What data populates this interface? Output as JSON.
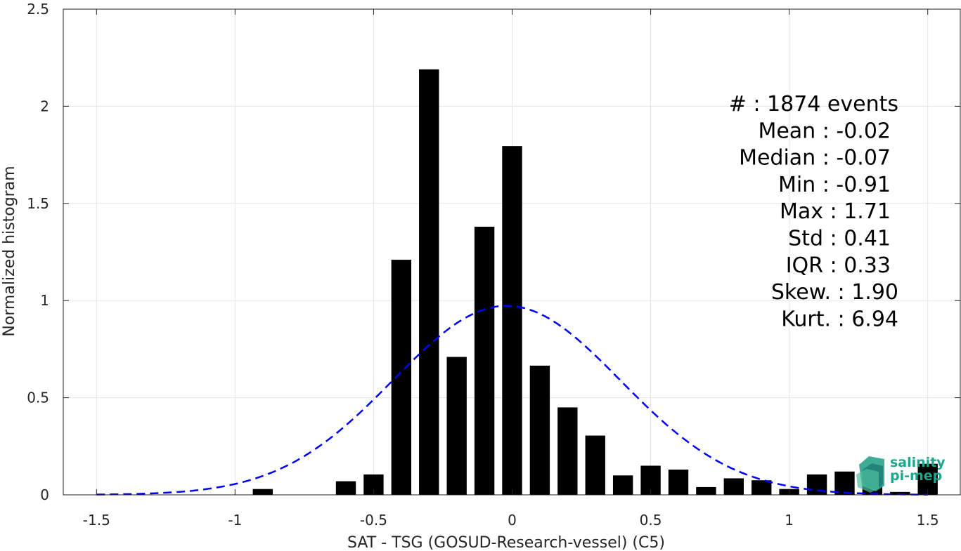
{
  "chart_data": {
    "type": "bar",
    "xlabel": "SAT - TSG (GOSUD-Research-vessel) (C5)",
    "ylabel": "Normalized histogram",
    "xlim": [
      -1.62,
      1.62
    ],
    "ylim": [
      0,
      2.5
    ],
    "xticks": [
      -1.5,
      -1,
      -0.5,
      0,
      0.5,
      1,
      1.5
    ],
    "xtick_labels": [
      "-1.5",
      "-1",
      "-0.5",
      "0",
      "0.5",
      "1",
      "1.5"
    ],
    "yticks": [
      0,
      0.5,
      1,
      1.5,
      2,
      2.5
    ],
    "ytick_labels": [
      "0",
      "0.5",
      "1",
      "1.5",
      "2",
      "2.5"
    ],
    "grid": true,
    "bin_width": 0.1,
    "bars": [
      {
        "x": -0.9,
        "y": 0.03
      },
      {
        "x": -0.6,
        "y": 0.07
      },
      {
        "x": -0.5,
        "y": 0.105
      },
      {
        "x": -0.4,
        "y": 1.21
      },
      {
        "x": -0.3,
        "y": 2.19
      },
      {
        "x": -0.2,
        "y": 0.71
      },
      {
        "x": -0.1,
        "y": 1.38
      },
      {
        "x": 0.0,
        "y": 1.795
      },
      {
        "x": 0.1,
        "y": 0.665
      },
      {
        "x": 0.2,
        "y": 0.45
      },
      {
        "x": 0.3,
        "y": 0.305
      },
      {
        "x": 0.4,
        "y": 0.1
      },
      {
        "x": 0.5,
        "y": 0.15
      },
      {
        "x": 0.6,
        "y": 0.13
      },
      {
        "x": 0.7,
        "y": 0.04
      },
      {
        "x": 0.8,
        "y": 0.085
      },
      {
        "x": 0.9,
        "y": 0.075
      },
      {
        "x": 1.0,
        "y": 0.03
      },
      {
        "x": 1.1,
        "y": 0.105
      },
      {
        "x": 1.2,
        "y": 0.12
      },
      {
        "x": 1.3,
        "y": 0.09
      },
      {
        "x": 1.4,
        "y": 0.015
      },
      {
        "x": 1.5,
        "y": 0.16
      }
    ],
    "fit_curve": {
      "style": "dashed",
      "color": "#0000ff",
      "mean": -0.02,
      "std": 0.41,
      "x_range": [
        -1.5,
        1.5
      ]
    },
    "bar_color": "#000000",
    "stats": [
      "#  : 1874 events",
      "Mean : -0.02",
      "Median : -0.07",
      "Min : -0.91",
      "Max : 1.71",
      "Std : 0.41",
      "IQR : 0.33",
      "Skew. : 1.90",
      "Kurt. : 6.94"
    ]
  },
  "logo": {
    "line1": "salinity",
    "line2": "pi-mep",
    "color": "#1aa88e"
  }
}
